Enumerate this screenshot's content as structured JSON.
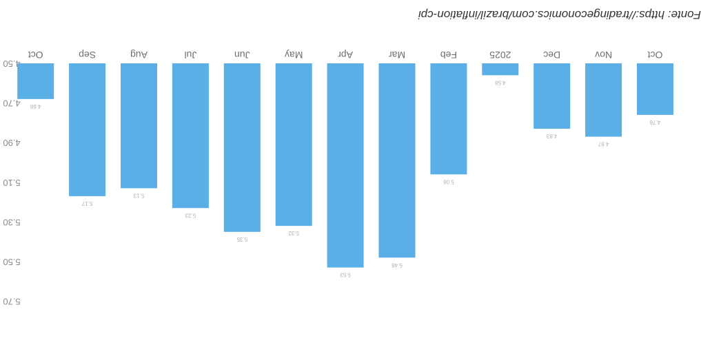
{
  "chart_data": {
    "type": "bar",
    "title": "",
    "xlabel": "",
    "ylabel": "",
    "categories": [
      "Oct",
      "Nov",
      "Dec",
      "2025",
      "Feb",
      "Mar",
      "Apr",
      "May",
      "Jun",
      "Jul",
      "Aug",
      "Sep",
      "Oct"
    ],
    "values": [
      4.76,
      4.87,
      4.83,
      4.56,
      5.06,
      5.48,
      5.53,
      5.32,
      5.35,
      5.23,
      5.13,
      5.17,
      4.68
    ],
    "value_labels": [
      "4.76",
      "4.87",
      "4.83",
      "4.56",
      "5.06",
      "5.48",
      "5.53",
      "5.32",
      "5.35",
      "5.23",
      "5.13",
      "5.17",
      "4.68"
    ],
    "ylim": [
      4.5,
      5.7
    ],
    "yticks": [
      4.5,
      4.7,
      4.9,
      5.1,
      5.3,
      5.5,
      5.7
    ],
    "ytick_labels": [
      "4.50",
      "4.70",
      "4.90",
      "5.10",
      "5.30",
      "5.50",
      "5.70"
    ],
    "bar_color": "#5aafe6",
    "grid": false,
    "legend": "none",
    "orientation": "rotated 180 degrees"
  },
  "source_note": "Fonte: https://tradingeconomics.com/brazil/inflation-cpi"
}
